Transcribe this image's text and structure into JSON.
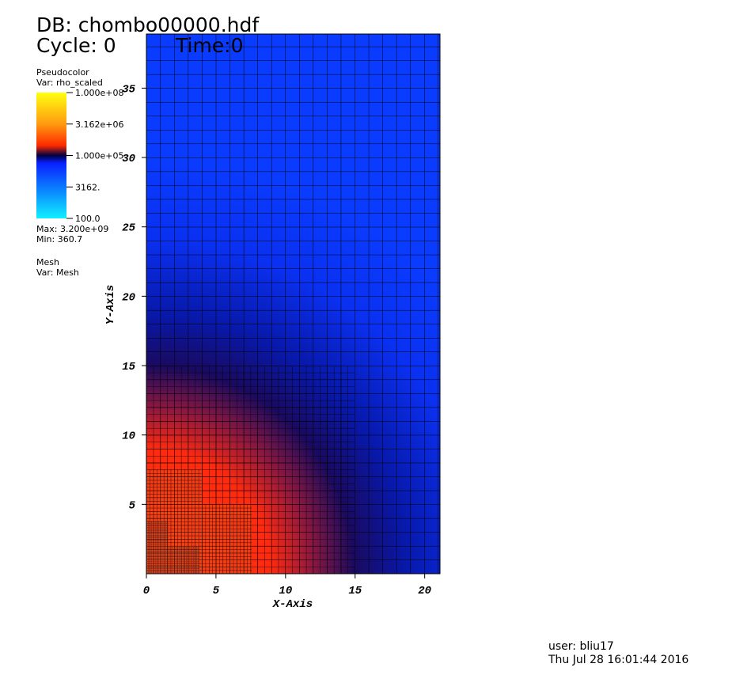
{
  "header": {
    "db": "DB: chombo00000.hdf",
    "cycle": "Cycle: 0",
    "time": "Time:0"
  },
  "legend": {
    "plot": "Pseudocolor",
    "var": "Var: rho_scaled",
    "scale": "log",
    "range": [
      100,
      100000000
    ],
    "ticks": [
      {
        "value": 100000000,
        "label": "1.000e+08"
      },
      {
        "value": 3162000,
        "label": "3.162e+06"
      },
      {
        "value": 100000,
        "label": "1.000e+05"
      },
      {
        "value": 3162,
        "label": "3162."
      },
      {
        "value": 100,
        "label": "100.0"
      }
    ],
    "max": "Max:  3.200e+09",
    "min": "Min:  360.7"
  },
  "mesh_legend": {
    "plot": "Mesh",
    "var": "Var: Mesh"
  },
  "chart_data": {
    "type": "pseudocolor",
    "x_label": "X-Axis",
    "y_label": "Y-Axis",
    "xlim": [
      0,
      21.1
    ],
    "ylim": [
      0,
      38.9
    ],
    "xticks": [
      0,
      5,
      10,
      15,
      20
    ],
    "yticks": [
      5,
      10,
      15,
      20,
      25,
      30,
      35
    ]
  },
  "footer": {
    "user": "user: bliu17",
    "date": "Thu Jul 28 16:01:44 2016"
  }
}
